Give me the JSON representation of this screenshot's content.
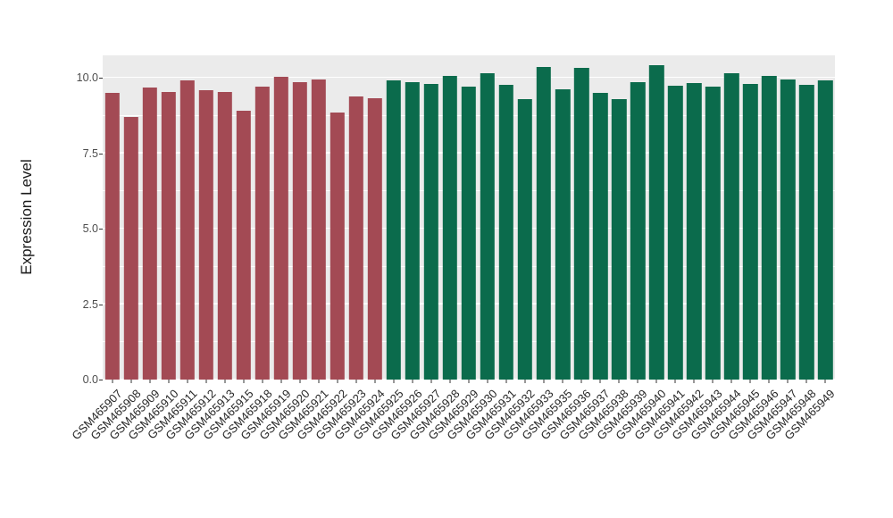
{
  "chart_data": {
    "type": "bar",
    "title": "",
    "xlabel": "",
    "ylabel": "Expression Level",
    "ylim": [
      0,
      10.74
    ],
    "yticks": [
      0.0,
      2.5,
      5.0,
      7.5,
      10.0
    ],
    "ytick_labels": [
      "0.0",
      "2.5",
      "5.0",
      "7.5",
      "10.0"
    ],
    "minor_gridlines": [
      1.25,
      3.75,
      6.25,
      8.75
    ],
    "grid": true,
    "legend_position": "none",
    "panel_background": "#EBEBEB",
    "grid_color": "#FFFFFF",
    "groups": [
      {
        "name": "maroon-group",
        "color": "#A34A54"
      },
      {
        "name": "green-group",
        "color": "#0B6B4C"
      }
    ],
    "bars": [
      {
        "label": "GSM465907",
        "value": 9.5,
        "group": 0
      },
      {
        "label": "GSM465908",
        "value": 8.7,
        "group": 0
      },
      {
        "label": "GSM465909",
        "value": 9.67,
        "group": 0
      },
      {
        "label": "GSM465910",
        "value": 9.53,
        "group": 0
      },
      {
        "label": "GSM465911",
        "value": 9.91,
        "group": 0
      },
      {
        "label": "GSM465912",
        "value": 9.59,
        "group": 0
      },
      {
        "label": "GSM465913",
        "value": 9.53,
        "group": 0
      },
      {
        "label": "GSM465915",
        "value": 8.9,
        "group": 0
      },
      {
        "label": "GSM465918",
        "value": 9.7,
        "group": 0
      },
      {
        "label": "GSM465919",
        "value": 10.02,
        "group": 0
      },
      {
        "label": "GSM465920",
        "value": 9.85,
        "group": 0
      },
      {
        "label": "GSM465921",
        "value": 9.94,
        "group": 0
      },
      {
        "label": "GSM465922",
        "value": 8.84,
        "group": 0
      },
      {
        "label": "GSM465923",
        "value": 9.38,
        "group": 0
      },
      {
        "label": "GSM465924",
        "value": 9.32,
        "group": 0
      },
      {
        "label": "GSM465925",
        "value": 9.91,
        "group": 1
      },
      {
        "label": "GSM465926",
        "value": 9.85,
        "group": 1
      },
      {
        "label": "GSM465927",
        "value": 9.79,
        "group": 1
      },
      {
        "label": "GSM465928",
        "value": 10.06,
        "group": 1
      },
      {
        "label": "GSM465929",
        "value": 9.7,
        "group": 1
      },
      {
        "label": "GSM465930",
        "value": 10.14,
        "group": 1
      },
      {
        "label": "GSM465931",
        "value": 9.76,
        "group": 1
      },
      {
        "label": "GSM465932",
        "value": 9.28,
        "group": 1
      },
      {
        "label": "GSM465933",
        "value": 10.36,
        "group": 1
      },
      {
        "label": "GSM465935",
        "value": 9.62,
        "group": 1
      },
      {
        "label": "GSM465936",
        "value": 10.34,
        "group": 1
      },
      {
        "label": "GSM465937",
        "value": 9.5,
        "group": 1
      },
      {
        "label": "GSM465938",
        "value": 9.3,
        "group": 1
      },
      {
        "label": "GSM465939",
        "value": 9.86,
        "group": 1
      },
      {
        "label": "GSM465940",
        "value": 10.42,
        "group": 1
      },
      {
        "label": "GSM465941",
        "value": 9.74,
        "group": 1
      },
      {
        "label": "GSM465942",
        "value": 9.83,
        "group": 1
      },
      {
        "label": "GSM465943",
        "value": 9.71,
        "group": 1
      },
      {
        "label": "GSM465944",
        "value": 10.16,
        "group": 1
      },
      {
        "label": "GSM465945",
        "value": 9.8,
        "group": 1
      },
      {
        "label": "GSM465946",
        "value": 10.07,
        "group": 1
      },
      {
        "label": "GSM465947",
        "value": 9.95,
        "group": 1
      },
      {
        "label": "GSM465948",
        "value": 9.77,
        "group": 1
      },
      {
        "label": "GSM465949",
        "value": 9.9,
        "group": 1
      }
    ]
  }
}
